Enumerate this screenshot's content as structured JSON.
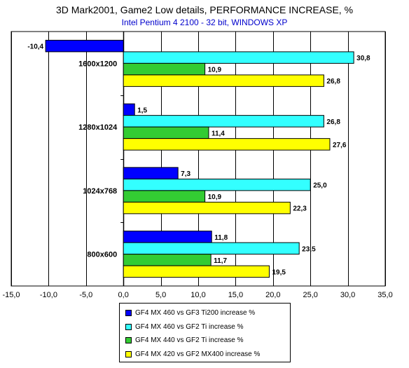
{
  "title": "3D Mark2001, Game2 Low details, PERFORMANCE INCREASE, %",
  "subtitle": "Intel Pentium 4 2100 - 32 bit, WINDOWS XP",
  "chart_data": {
    "type": "bar",
    "orientation": "horizontal",
    "categories": [
      "1600x1200",
      "1280x1024",
      "1024x768",
      "800x600"
    ],
    "series": [
      {
        "name": "GF4 MX 460 vs GF3 Ti200 increase %",
        "color": "#0000ff",
        "values": [
          -10.4,
          1.5,
          7.3,
          11.8
        ],
        "labels": [
          "-10,4",
          "1,5",
          "7,3",
          "11,8"
        ]
      },
      {
        "name": "GF4 MX 460 vs GF2 Ti increase %",
        "color": "#33ffff",
        "values": [
          30.8,
          26.8,
          25.0,
          23.5
        ],
        "labels": [
          "30,8",
          "26,8",
          "25,0",
          "23,5"
        ]
      },
      {
        "name": "GF4 MX 440 vs GF2 Ti increase %",
        "color": "#33cc33",
        "values": [
          10.9,
          11.4,
          10.9,
          11.7
        ],
        "labels": [
          "10,9",
          "11,4",
          "10,9",
          "11,7"
        ]
      },
      {
        "name": "GF4 MX 420 vs GF2 MX400 increase %",
        "color": "#ffff00",
        "values": [
          26.8,
          27.6,
          22.3,
          19.5
        ],
        "labels": [
          "26,8",
          "27,6",
          "22,3",
          "19,5"
        ]
      }
    ],
    "xlim": [
      -15,
      35
    ],
    "xticks": [
      -15,
      -10,
      -5,
      0,
      5,
      10,
      15,
      20,
      25,
      30,
      35
    ],
    "xtick_labels": [
      "-15,0",
      "-10,0",
      "-5,0",
      "0,0",
      "5,0",
      "10,0",
      "15,0",
      "20,0",
      "25,0",
      "30,0",
      "35,0"
    ],
    "grid": true,
    "legend_position": "bottom"
  }
}
